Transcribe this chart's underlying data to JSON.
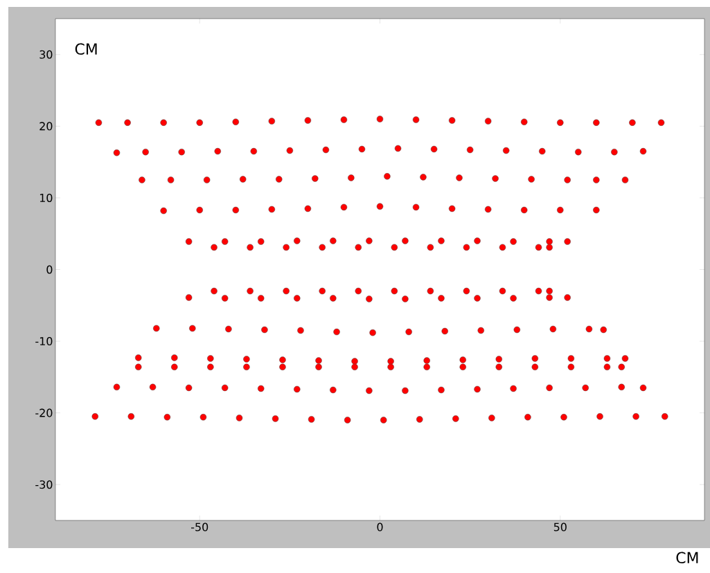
{
  "chart_data": {
    "type": "scatter",
    "xlabel": "CM",
    "ylabel": "CM",
    "xlim": [
      -90,
      90
    ],
    "ylim": [
      -35,
      35
    ],
    "xticks": [
      -50,
      0,
      50
    ],
    "yticks": [
      -30,
      -20,
      -10,
      0,
      10,
      20,
      30
    ],
    "marker": "circle",
    "grid": false,
    "series": [
      {
        "color": "#ff0000",
        "x": [
          -78,
          -70,
          -60,
          -50,
          -40,
          -30,
          -20,
          -10,
          0,
          10,
          20,
          30,
          40,
          50,
          60,
          70,
          78,
          -73,
          -65,
          -55,
          -45,
          -35,
          -25,
          -15,
          -5,
          5,
          15,
          25,
          35,
          45,
          55,
          65,
          73,
          -66,
          -58,
          -48,
          -38,
          -28,
          -18,
          -8,
          2,
          12,
          22,
          32,
          42,
          52,
          60,
          68,
          -60,
          -50,
          -40,
          -30,
          -20,
          -10,
          0,
          10,
          20,
          30,
          40,
          50,
          60,
          -53,
          -43,
          -33,
          -23,
          -13,
          -3,
          7,
          17,
          27,
          37,
          47,
          52,
          -46,
          -36,
          -26,
          -16,
          -6,
          4,
          14,
          24,
          34,
          44,
          47,
          -46,
          -36,
          -26,
          -16,
          -6,
          4,
          14,
          24,
          34,
          44,
          47,
          -53,
          -43,
          -33,
          -23,
          -13,
          -3,
          7,
          17,
          27,
          37,
          47,
          52,
          -62,
          -52,
          -42,
          -32,
          -22,
          -12,
          -2,
          8,
          18,
          28,
          38,
          48,
          58,
          62,
          -67,
          -57,
          -47,
          -37,
          -27,
          -17,
          -7,
          3,
          13,
          23,
          33,
          43,
          53,
          63,
          68,
          -67,
          -57,
          -47,
          -37,
          -27,
          -17,
          -7,
          3,
          13,
          23,
          33,
          43,
          53,
          63,
          67,
          -73,
          -63,
          -53,
          -43,
          -33,
          -23,
          -13,
          -3,
          7,
          17,
          27,
          37,
          47,
          57,
          67,
          73,
          -79,
          -69,
          -59,
          -49,
          -39,
          -29,
          -19,
          -9,
          1,
          11,
          21,
          31,
          41,
          51,
          61,
          71,
          79
        ],
        "values": [
          20.5,
          20.5,
          20.5,
          20.5,
          20.6,
          20.7,
          20.8,
          20.9,
          21,
          20.9,
          20.8,
          20.7,
          20.6,
          20.5,
          20.5,
          20.5,
          20.5,
          16.3,
          16.4,
          16.4,
          16.5,
          16.5,
          16.6,
          16.7,
          16.8,
          16.9,
          16.8,
          16.7,
          16.6,
          16.5,
          16.4,
          16.4,
          16.5,
          12.5,
          12.5,
          12.5,
          12.6,
          12.6,
          12.7,
          12.8,
          13,
          12.9,
          12.8,
          12.7,
          12.6,
          12.5,
          12.5,
          12.5,
          8.2,
          8.3,
          8.3,
          8.4,
          8.5,
          8.7,
          8.8,
          8.7,
          8.5,
          8.4,
          8.3,
          8.3,
          8.3,
          3.9,
          3.9,
          3.9,
          4,
          4,
          4,
          4,
          4,
          4,
          3.9,
          3.9,
          3.9,
          3.1,
          3.1,
          3.1,
          3.1,
          3.1,
          3.1,
          3.1,
          3.1,
          3.1,
          3.1,
          3.1,
          -3,
          -3,
          -3,
          -3,
          -3,
          -3,
          -3,
          -3,
          -3,
          -3,
          -3,
          -3.9,
          -4,
          -4,
          -4,
          -4,
          -4.1,
          -4.1,
          -4,
          -4,
          -4,
          -3.9,
          -3.9,
          -8.2,
          -8.2,
          -8.3,
          -8.4,
          -8.5,
          -8.7,
          -8.8,
          -8.7,
          -8.6,
          -8.5,
          -8.4,
          -8.3,
          -8.3,
          -8.4,
          -12.3,
          -12.3,
          -12.4,
          -12.5,
          -12.6,
          -12.7,
          -12.8,
          -12.8,
          -12.7,
          -12.6,
          -12.5,
          -12.4,
          -12.4,
          -12.4,
          -12.4,
          -13.6,
          -13.6,
          -13.6,
          -13.6,
          -13.6,
          -13.6,
          -13.6,
          -13.6,
          -13.6,
          -13.6,
          -13.6,
          -13.6,
          -13.6,
          -13.6,
          -13.6,
          -16.4,
          -16.4,
          -16.5,
          -16.5,
          -16.6,
          -16.7,
          -16.8,
          -16.9,
          -16.9,
          -16.8,
          -16.7,
          -16.6,
          -16.5,
          -16.5,
          -16.4,
          -16.5,
          -20.5,
          -20.5,
          -20.6,
          -20.6,
          -20.7,
          -20.8,
          -20.9,
          -21,
          -21,
          -20.9,
          -20.8,
          -20.7,
          -20.6,
          -20.6,
          -20.5,
          -20.5,
          -20.5
        ]
      }
    ]
  }
}
